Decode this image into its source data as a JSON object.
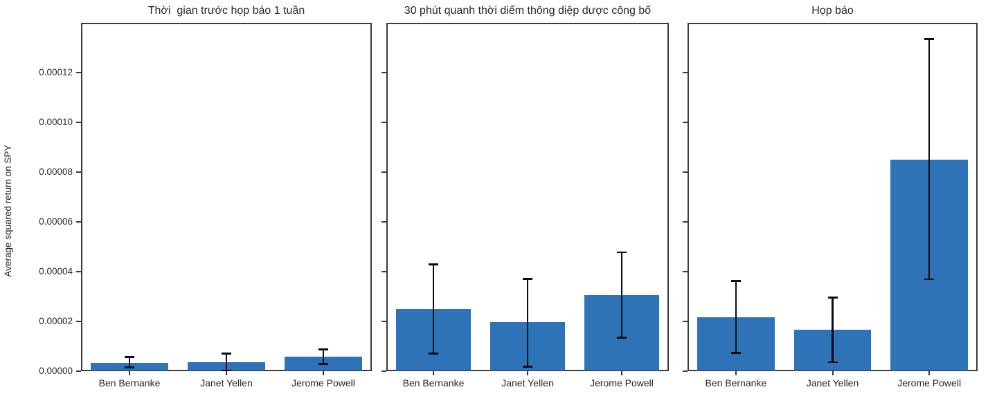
{
  "figure": {
    "background": "#ffffff"
  },
  "colors": {
    "bar": "#2e72b8",
    "error_bar": "#0b0b16",
    "axis": "#3a3a3a",
    "text": "#262626"
  },
  "axis": {
    "ylabel": "Average squared return on SPY",
    "ytick_labels": [
      "0.00000",
      "0.00002",
      "0.00004",
      "0.00006",
      "0.00008",
      "0.00010",
      "0.00012"
    ],
    "ytick_values": [
      0,
      2e-05,
      4e-05,
      6e-05,
      8e-05,
      0.0001,
      0.00012
    ],
    "ylim": [
      0,
      0.00014
    ],
    "grid": false,
    "legend": "none"
  },
  "chart_data": [
    {
      "type": "bar",
      "title": "Thời  gian trước họp báo 1 tuần",
      "categories": [
        "Ben Bernanke",
        "Janet Yellen",
        "Jerome Powell"
      ],
      "values": [
        3.4e-06,
        3.7e-06,
        5.8e-06
      ],
      "error_min": [
        1.6e-06,
        3e-07,
        3e-06
      ],
      "error_max": [
        5.8e-06,
        7.1e-06,
        8.8e-06
      ],
      "xlabel": "",
      "ylabel": "Average squared return on SPY",
      "ylim": [
        0,
        0.00014
      ]
    },
    {
      "type": "bar",
      "title": "30 phút quanh thời diểm thông diệp dược công bố",
      "categories": [
        "Ben Bernanke",
        "Janet Yellen",
        "Jerome Powell"
      ],
      "values": [
        2.5e-05,
        1.96e-05,
        3.06e-05
      ],
      "error_min": [
        7.2e-06,
        1.9e-06,
        1.35e-05
      ],
      "error_max": [
        4.3e-05,
        3.72e-05,
        4.78e-05
      ],
      "xlabel": "",
      "ylabel": "",
      "ylim": [
        0,
        0.00014
      ]
    },
    {
      "type": "bar",
      "title": "Họp báo",
      "categories": [
        "Ben Bernanke",
        "Janet Yellen",
        "Jerome Powell"
      ],
      "values": [
        2.17e-05,
        1.66e-05,
        8.51e-05
      ],
      "error_min": [
        7.4e-06,
        3.7e-06,
        3.7e-05
      ],
      "error_max": [
        3.63e-05,
        2.97e-05,
        0.0001335
      ],
      "xlabel": "",
      "ylabel": "",
      "ylim": [
        0,
        0.00014
      ]
    }
  ]
}
